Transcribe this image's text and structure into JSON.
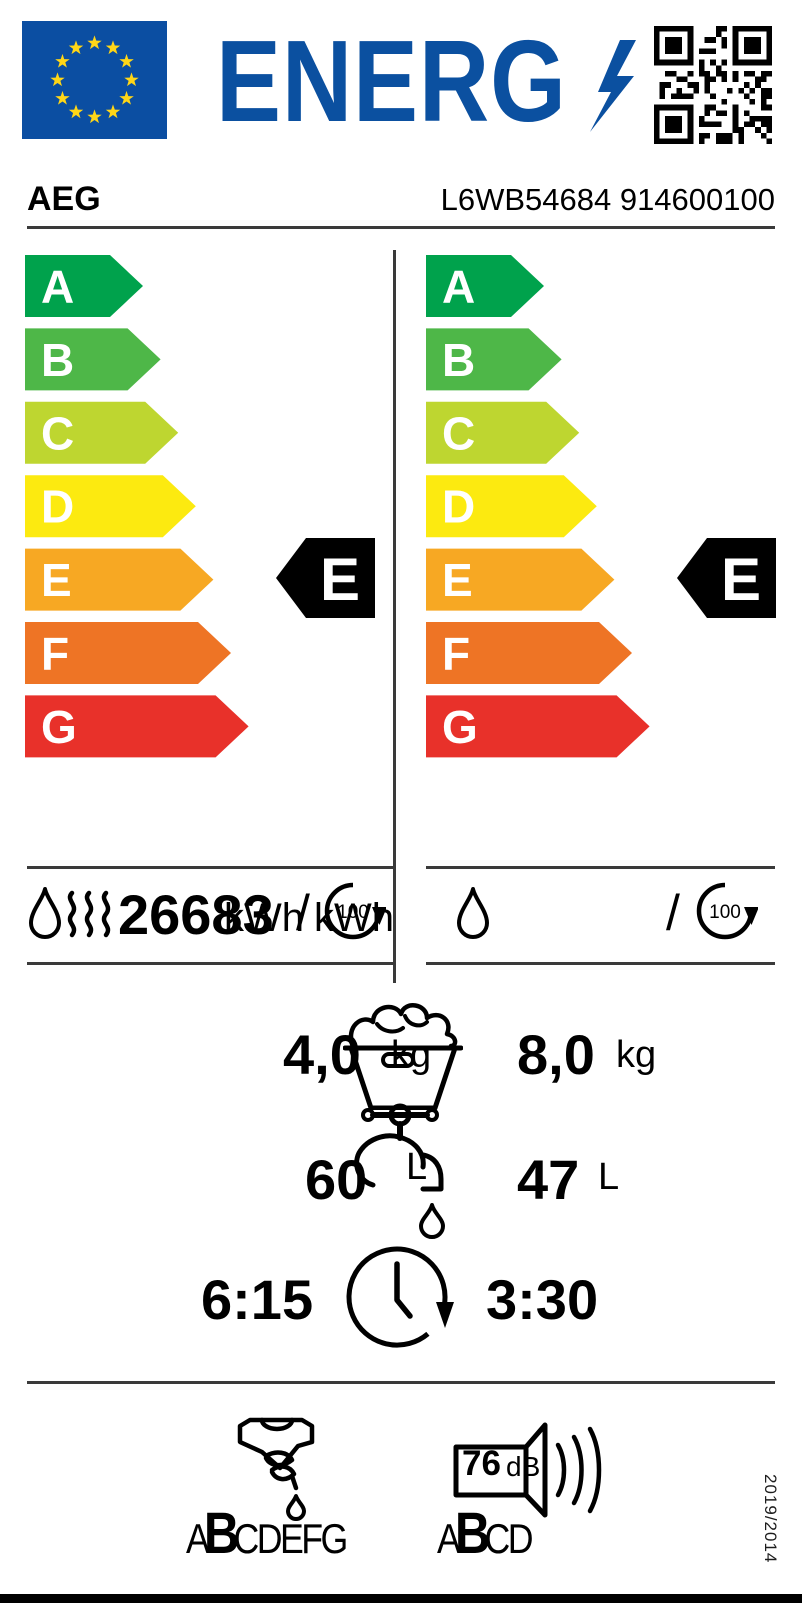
{
  "colors": {
    "eu_blue": "#0b4ea2",
    "star_yellow": "#ffd617",
    "logo_blue": "#0b50a0",
    "indicator_black": "#000000",
    "grade_a": "#00a24c",
    "grade_b": "#4eb748",
    "grade_c": "#bed630",
    "grade_d": "#fcea10",
    "grade_e": "#f7a823",
    "grade_f": "#ee7425",
    "grade_g": "#e8312a"
  },
  "header": {
    "energ_text": "ENERG",
    "brand": "AEG",
    "model": "L6WB54684 914600100"
  },
  "scales": {
    "grades": [
      {
        "letter": "A",
        "color": "#00a24c"
      },
      {
        "letter": "B",
        "color": "#4eb748"
      },
      {
        "letter": "C",
        "color": "#bed630"
      },
      {
        "letter": "D",
        "color": "#fcea10"
      },
      {
        "letter": "E",
        "color": "#f7a823"
      },
      {
        "letter": "F",
        "color": "#ee7425"
      },
      {
        "letter": "G",
        "color": "#e8312a"
      }
    ],
    "left_rating": "E",
    "right_rating": "E"
  },
  "energy": {
    "left_value": "26683",
    "left_unit": "kWh",
    "left_slash": "/",
    "left_unit_overlap": "kWh",
    "left_cycles": "100",
    "right_slash": "/",
    "right_cycles": "100"
  },
  "capacity": {
    "left_value": "4,0",
    "left_unit": "kg",
    "right_value": "8,0",
    "right_unit": "kg"
  },
  "water": {
    "left_value": "60",
    "left_unit": "L",
    "right_value": "47",
    "right_unit": "L"
  },
  "duration": {
    "left_value": "6:15",
    "right_value": "3:30"
  },
  "spin_class": {
    "letters": [
      "A",
      "B",
      "C",
      "D",
      "E",
      "F",
      "G"
    ],
    "rating": "B"
  },
  "noise": {
    "value": "76",
    "unit": "dB",
    "letters": [
      "A",
      "B",
      "C",
      "D"
    ],
    "rating": "B"
  },
  "regulation": "2019/2014"
}
